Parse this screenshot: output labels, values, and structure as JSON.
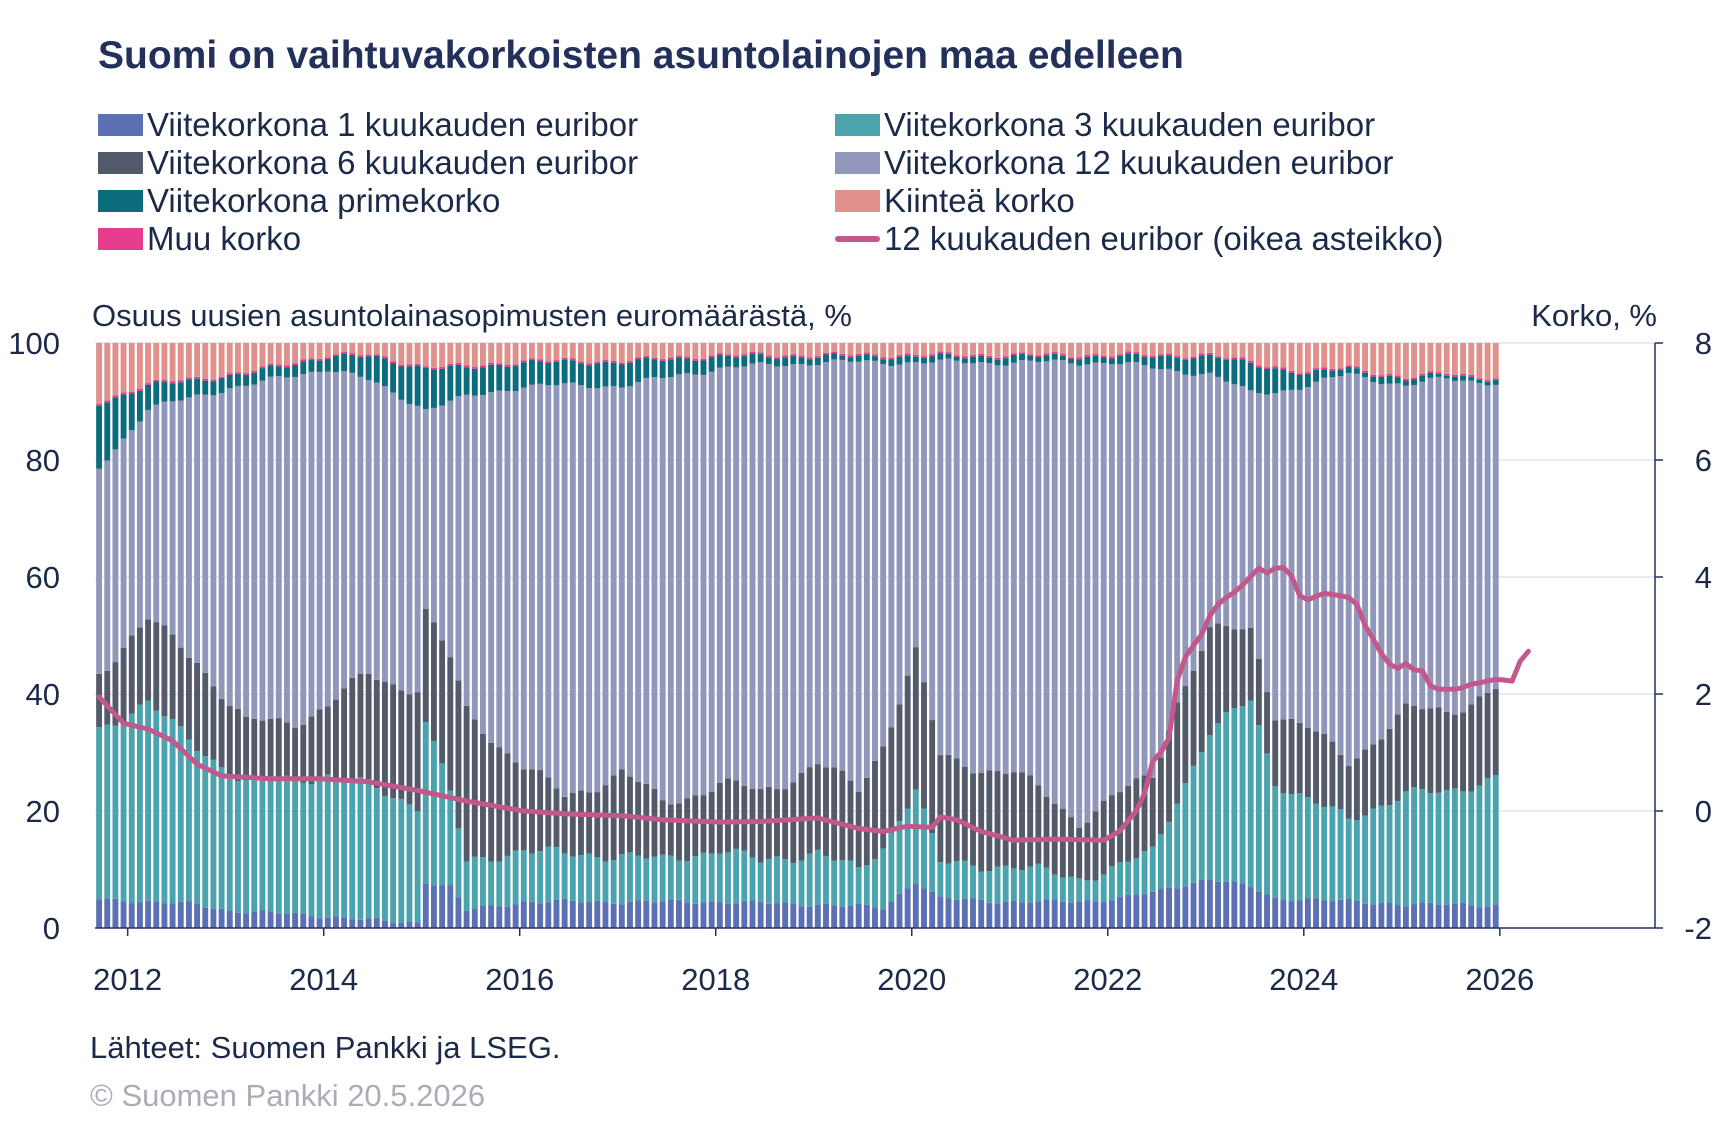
{
  "chart_data": {
    "type": "bar",
    "stacked": true,
    "title": "Suomi on vaihtuvakorkoisten asuntolainojen maa edelleen",
    "ylabel": "Osuus uusien asuntolainasopimusten euromäärästä, %",
    "y2label": "Korko, %",
    "ylim": [
      0,
      100
    ],
    "y2lim": [
      -2,
      8
    ],
    "yticks": [
      "0",
      "20",
      "40",
      "60",
      "80",
      "100"
    ],
    "y2ticks": [
      "-2",
      "0",
      "2",
      "4",
      "6",
      "8"
    ],
    "xticks": [
      "2012",
      "2014",
      "2016",
      "2018",
      "2020",
      "2022",
      "2024",
      "2026"
    ],
    "xlim": [
      "2011-09",
      "2027-08"
    ],
    "grid": true,
    "legend_position": "top",
    "series_meta": [
      {
        "name": "Viitekorkona 1 kuukauden euribor",
        "color": "#5b70b5",
        "kind": "bar"
      },
      {
        "name": "Viitekorkona 3 kuukauden euribor",
        "color": "#4ba3ad",
        "kind": "bar"
      },
      {
        "name": "Viitekorkona 6 kuukauden euribor",
        "color": "#535b6b",
        "kind": "bar"
      },
      {
        "name": "Viitekorkona 12 kuukauden euribor",
        "color": "#9097bb",
        "kind": "bar"
      },
      {
        "name": "Viitekorkona primekorko",
        "color": "#0a6c7d",
        "kind": "bar"
      },
      {
        "name": "Kiinteä korko",
        "color": "#e0918c",
        "kind": "bar"
      },
      {
        "name": "Muu korko",
        "color": "#e53c8c",
        "kind": "bar"
      },
      {
        "name": "12 kuukauden euribor (oikea asteikko)",
        "color": "#c2588c",
        "kind": "line",
        "axis": "right"
      }
    ],
    "months_from": "2011-09",
    "months_to": "2025-12",
    "keypoints": {
      "eur1": [
        [
          "2011-09",
          5
        ],
        [
          "2012-09",
          4
        ],
        [
          "2013-01",
          3
        ],
        [
          "2014-01",
          2
        ],
        [
          "2014-09",
          1
        ],
        [
          "2014-12",
          1
        ],
        [
          "2015-01",
          8
        ],
        [
          "2015-04",
          7
        ],
        [
          "2015-06",
          3
        ],
        [
          "2016-01",
          4.5
        ],
        [
          "2018-01",
          4.5
        ],
        [
          "2019-01",
          4
        ],
        [
          "2019-09",
          3.5
        ],
        [
          "2020-01",
          8
        ],
        [
          "2020-04",
          5
        ],
        [
          "2021-01",
          4.5
        ],
        [
          "2021-09",
          4.5
        ],
        [
          "2022-01",
          5
        ],
        [
          "2022-06",
          6
        ],
        [
          "2023-01",
          8.5
        ],
        [
          "2023-06",
          7
        ],
        [
          "2023-09",
          5
        ],
        [
          "2024-01",
          5
        ],
        [
          "2024-06",
          4.5
        ],
        [
          "2025-03",
          4
        ],
        [
          "2025-12",
          4
        ]
      ],
      "eur3": [
        [
          "2011-09",
          29
        ],
        [
          "2012-03",
          34
        ],
        [
          "2012-09",
          27
        ],
        [
          "2013-03",
          22
        ],
        [
          "2014-01",
          24
        ],
        [
          "2014-06",
          23
        ],
        [
          "2014-12",
          20
        ],
        [
          "2015-01",
          28
        ],
        [
          "2015-06",
          8
        ],
        [
          "2016-01",
          9
        ],
        [
          "2016-06",
          8
        ],
        [
          "2017-01",
          8
        ],
        [
          "2017-06",
          7
        ],
        [
          "2018-01",
          9
        ],
        [
          "2018-06",
          7
        ],
        [
          "2019-01",
          9
        ],
        [
          "2019-06",
          6
        ],
        [
          "2020-01",
          16
        ],
        [
          "2020-04",
          6
        ],
        [
          "2021-01",
          6
        ],
        [
          "2021-09",
          4
        ],
        [
          "2022-01",
          5
        ],
        [
          "2022-06",
          7
        ],
        [
          "2022-09",
          15
        ],
        [
          "2023-01",
          25
        ],
        [
          "2023-06",
          32
        ],
        [
          "2023-09",
          20
        ],
        [
          "2024-01",
          17
        ],
        [
          "2024-06",
          14
        ],
        [
          "2025-01",
          19
        ],
        [
          "2025-06",
          19
        ],
        [
          "2025-12",
          22
        ]
      ],
      "eur6": [
        [
          "2011-09",
          10
        ],
        [
          "2012-03",
          14
        ],
        [
          "2012-09",
          15
        ],
        [
          "2013-03",
          10
        ],
        [
          "2013-09",
          10
        ],
        [
          "2014-01",
          12
        ],
        [
          "2014-06",
          19
        ],
        [
          "2014-12",
          20
        ],
        [
          "2015-01",
          18
        ],
        [
          "2015-06",
          26
        ],
        [
          "2016-01",
          14
        ],
        [
          "2016-06",
          10
        ],
        [
          "2017-01",
          14
        ],
        [
          "2017-06",
          10
        ],
        [
          "2018-01",
          11
        ],
        [
          "2018-06",
          12
        ],
        [
          "2019-01",
          15
        ],
        [
          "2019-06",
          14
        ],
        [
          "2020-01",
          23
        ],
        [
          "2020-04",
          18
        ],
        [
          "2021-01",
          16
        ],
        [
          "2021-09",
          10
        ],
        [
          "2022-01",
          12
        ],
        [
          "2022-06",
          13
        ],
        [
          "2022-09",
          17
        ],
        [
          "2023-01",
          17
        ],
        [
          "2023-06",
          12
        ],
        [
          "2023-09",
          12
        ],
        [
          "2024-01",
          12
        ],
        [
          "2024-06",
          10
        ],
        [
          "2025-01",
          14
        ],
        [
          "2025-06",
          14
        ],
        [
          "2025-12",
          15
        ]
      ],
      "prime": [
        [
          "2011-09",
          11
        ],
        [
          "2012-03",
          4
        ],
        [
          "2013-01",
          2
        ],
        [
          "2014-01",
          2
        ],
        [
          "2015-01",
          7
        ],
        [
          "2015-06",
          5
        ],
        [
          "2016-01",
          4
        ],
        [
          "2017-01",
          4
        ],
        [
          "2018-01",
          2
        ],
        [
          "2019-01",
          1
        ],
        [
          "2020-01",
          1
        ],
        [
          "2021-01",
          1
        ],
        [
          "2022-01",
          1
        ],
        [
          "2022-06",
          2
        ],
        [
          "2023-01",
          3
        ],
        [
          "2023-06",
          5
        ],
        [
          "2023-09",
          4
        ],
        [
          "2024-01",
          2
        ],
        [
          "2024-06",
          1
        ],
        [
          "2025-01",
          1
        ],
        [
          "2025-12",
          0.5
        ]
      ],
      "fixed": [
        [
          "2011-09",
          10
        ],
        [
          "2012-03",
          7
        ],
        [
          "2012-09",
          6
        ],
        [
          "2013-03",
          5
        ],
        [
          "2014-01",
          2
        ],
        [
          "2014-06",
          2
        ],
        [
          "2015-01",
          4
        ],
        [
          "2015-06",
          4
        ],
        [
          "2016-01",
          3
        ],
        [
          "2017-01",
          3
        ],
        [
          "2018-01",
          2
        ],
        [
          "2019-01",
          2
        ],
        [
          "2020-01",
          2
        ],
        [
          "2021-01",
          2
        ],
        [
          "2022-01",
          2
        ],
        [
          "2023-01",
          2
        ],
        [
          "2023-09",
          4
        ],
        [
          "2024-01",
          5
        ],
        [
          "2024-06",
          4
        ],
        [
          "2025-01",
          6
        ],
        [
          "2025-06",
          5
        ],
        [
          "2025-12",
          6
        ]
      ],
      "other": [
        [
          "2011-09",
          0.3
        ],
        [
          "2025-12",
          0.3
        ]
      ],
      "euribor12": [
        [
          "2011-09",
          1.95
        ],
        [
          "2011-12",
          1.5
        ],
        [
          "2012-03",
          1.4
        ],
        [
          "2012-06",
          1.2
        ],
        [
          "2012-09",
          0.8
        ],
        [
          "2012-12",
          0.6
        ],
        [
          "2013-06",
          0.55
        ],
        [
          "2013-12",
          0.55
        ],
        [
          "2014-06",
          0.5
        ],
        [
          "2014-12",
          0.35
        ],
        [
          "2015-06",
          0.17
        ],
        [
          "2016-01",
          0.0
        ],
        [
          "2016-06",
          -0.05
        ],
        [
          "2017-01",
          -0.08
        ],
        [
          "2017-06",
          -0.15
        ],
        [
          "2018-01",
          -0.19
        ],
        [
          "2018-06",
          -0.18
        ],
        [
          "2019-01",
          -0.12
        ],
        [
          "2019-06",
          -0.3
        ],
        [
          "2019-09",
          -0.35
        ],
        [
          "2019-12",
          -0.26
        ],
        [
          "2020-03",
          -0.28
        ],
        [
          "2020-04",
          -0.1
        ],
        [
          "2020-06",
          -0.15
        ],
        [
          "2020-09",
          -0.35
        ],
        [
          "2021-01",
          -0.5
        ],
        [
          "2021-06",
          -0.48
        ],
        [
          "2021-12",
          -0.5
        ],
        [
          "2022-02",
          -0.34
        ],
        [
          "2022-04",
          0.01
        ],
        [
          "2022-05",
          0.3
        ],
        [
          "2022-06",
          0.85
        ],
        [
          "2022-07",
          1.0
        ],
        [
          "2022-08",
          1.25
        ],
        [
          "2022-09",
          2.23
        ],
        [
          "2022-10",
          2.63
        ],
        [
          "2022-11",
          2.83
        ],
        [
          "2022-12",
          3.02
        ],
        [
          "2023-01",
          3.34
        ],
        [
          "2023-02",
          3.53
        ],
        [
          "2023-03",
          3.65
        ],
        [
          "2023-04",
          3.74
        ],
        [
          "2023-05",
          3.86
        ],
        [
          "2023-06",
          4.01
        ],
        [
          "2023-07",
          4.15
        ],
        [
          "2023-08",
          4.07
        ],
        [
          "2023-09",
          4.15
        ],
        [
          "2023-10",
          4.16
        ],
        [
          "2023-11",
          4.02
        ],
        [
          "2023-12",
          3.68
        ],
        [
          "2024-01",
          3.61
        ],
        [
          "2024-02",
          3.67
        ],
        [
          "2024-03",
          3.72
        ],
        [
          "2024-04",
          3.7
        ],
        [
          "2024-05",
          3.68
        ],
        [
          "2024-06",
          3.65
        ],
        [
          "2024-07",
          3.53
        ],
        [
          "2024-08",
          3.17
        ],
        [
          "2024-09",
          2.94
        ],
        [
          "2024-10",
          2.69
        ],
        [
          "2024-11",
          2.51
        ],
        [
          "2024-12",
          2.44
        ],
        [
          "2025-01",
          2.52
        ],
        [
          "2025-02",
          2.41
        ],
        [
          "2025-03",
          2.4
        ],
        [
          "2025-04",
          2.14
        ],
        [
          "2025-05",
          2.08
        ],
        [
          "2025-06",
          2.08
        ],
        [
          "2025-07",
          2.08
        ],
        [
          "2025-08",
          2.11
        ],
        [
          "2025-09",
          2.17
        ],
        [
          "2025-10",
          2.19
        ],
        [
          "2025-11",
          2.22
        ],
        [
          "2025-12",
          2.25
        ],
        [
          "2026-01",
          2.24
        ],
        [
          "2026-02",
          2.22
        ],
        [
          "2026-03",
          2.56
        ],
        [
          "2026-04",
          2.73
        ]
      ]
    }
  },
  "legend": {
    "eur1": "Viitekorkona 1 kuukauden euribor",
    "eur3": "Viitekorkona 3 kuukauden euribor",
    "eur6": "Viitekorkona 6 kuukauden euribor",
    "eur12": "Viitekorkona 12 kuukauden euribor",
    "prime": "Viitekorkona primekorko",
    "fixed": "Kiinteä korko",
    "other": "Muu korko",
    "line": "12 kuukauden euribor (oikea asteikko)"
  },
  "colors": {
    "eur1": "#5b70b5",
    "eur3": "#4ba3ad",
    "eur6": "#535b6b",
    "eur12": "#9097bb",
    "prime": "#0a6c7d",
    "fixed": "#e0918c",
    "other": "#e53c8c",
    "line": "#c2588c"
  },
  "footer": {
    "source": "Lähteet: Suomen Pankki ja LSEG.",
    "copyright": "© Suomen Pankki 20.5.2026"
  }
}
